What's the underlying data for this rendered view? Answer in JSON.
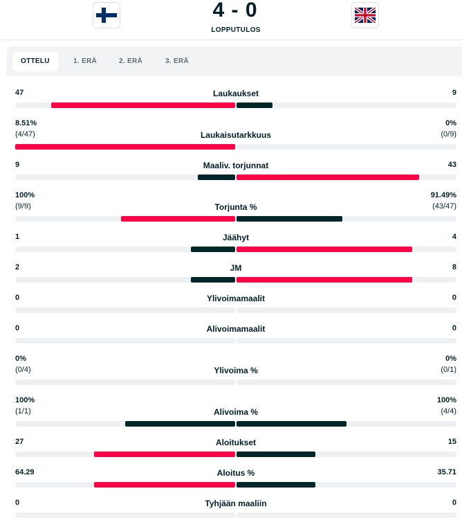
{
  "header": {
    "score": "4 - 0",
    "status": "LOPPUTULOS",
    "home_flag_icon": "finland-flag-icon",
    "away_flag_icon": "great-britain-flag-icon"
  },
  "tabs": [
    "OTTELU",
    "1. ERÄ",
    "2. ERÄ",
    "3. ERÄ"
  ],
  "colors": {
    "leader": "#ff0046",
    "other": "#002629",
    "track": "#eef0f1"
  },
  "stats": [
    {
      "label": "Laukaukset",
      "home": "47",
      "away": "9",
      "home_sub": "",
      "away_sub": "",
      "home_fill": 0.835,
      "away_fill": 0.165,
      "leader": "home"
    },
    {
      "label": "Laukaisutarkkuus",
      "home": "8.51%",
      "away": "0%",
      "home_sub": "(4/47)",
      "away_sub": "(0/9)",
      "home_fill": 1.0,
      "away_fill": 0.0,
      "leader": "home"
    },
    {
      "label": "Maaliv. torjunnat",
      "home": "9",
      "away": "43",
      "home_sub": "",
      "away_sub": "",
      "home_fill": 0.17,
      "away_fill": 0.83,
      "leader": "away"
    },
    {
      "label": "Torjunta %",
      "home": "100%",
      "away": "91.49%",
      "home_sub": "(9/9)",
      "away_sub": "(43/47)",
      "home_fill": 0.52,
      "away_fill": 0.48,
      "leader": "home"
    },
    {
      "label": "Jäähyt",
      "home": "1",
      "away": "4",
      "home_sub": "",
      "away_sub": "",
      "home_fill": 0.2,
      "away_fill": 0.8,
      "leader": "away"
    },
    {
      "label": "JM",
      "home": "2",
      "away": "8",
      "home_sub": "",
      "away_sub": "",
      "home_fill": 0.2,
      "away_fill": 0.8,
      "leader": "away"
    },
    {
      "label": "Ylivoimamaalit",
      "home": "0",
      "away": "0",
      "home_sub": "",
      "away_sub": "",
      "home_fill": 0,
      "away_fill": 0,
      "leader": "none"
    },
    {
      "label": "Alivoimamaalit",
      "home": "0",
      "away": "0",
      "home_sub": "",
      "away_sub": "",
      "home_fill": 0,
      "away_fill": 0,
      "leader": "none"
    },
    {
      "label": "Ylivoima %",
      "home": "0%",
      "away": "0%",
      "home_sub": "(0/4)",
      "away_sub": "(0/1)",
      "home_fill": 0,
      "away_fill": 0,
      "leader": "none"
    },
    {
      "label": "Alivoima %",
      "home": "100%",
      "away": "100%",
      "home_sub": "(1/1)",
      "away_sub": "(4/4)",
      "home_fill": 0.5,
      "away_fill": 0.5,
      "leader": "tie"
    },
    {
      "label": "Aloitukset",
      "home": "27",
      "away": "15",
      "home_sub": "",
      "away_sub": "",
      "home_fill": 0.643,
      "away_fill": 0.357,
      "leader": "home"
    },
    {
      "label": "Aloitus %",
      "home": "64.29",
      "away": "35.71",
      "home_sub": "",
      "away_sub": "",
      "home_fill": 0.643,
      "away_fill": 0.357,
      "leader": "home"
    },
    {
      "label": "Tyhjään maaliin",
      "home": "0",
      "away": "0",
      "home_sub": "",
      "away_sub": "",
      "home_fill": 0,
      "away_fill": 0,
      "leader": "none"
    }
  ]
}
